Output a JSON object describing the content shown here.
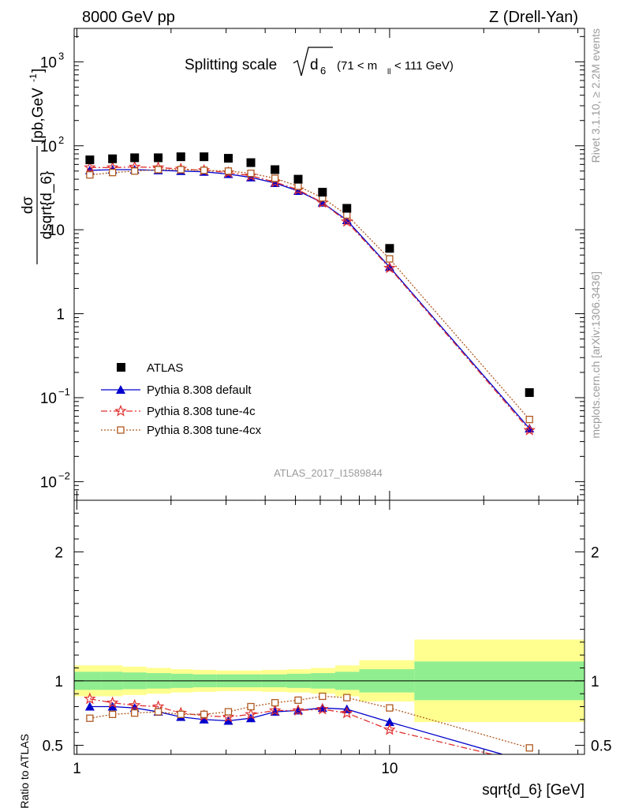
{
  "header": {
    "left": "8000 GeV pp",
    "right": "Z (Drell-Yan)"
  },
  "side": {
    "rivet": "Rivet 3.1.10, ≥ 2.2M events",
    "mcplots": "mcplots.cern.ch [arXiv:1306.3436]"
  },
  "watermark": "ATLAS_2017_I1589844",
  "chart_data": [
    {
      "type": "scatter",
      "panel": "main",
      "title": "Splitting scale √d6 (71 < mll < 111 GeV)",
      "title_parts": {
        "prefix": "Splitting scale",
        "sym": "d",
        "sub": "6",
        "cut": "(71 < m",
        "cut_sub": "ll",
        "cut_end": " < 111 GeV)"
      },
      "ylabel": "dσ/dsqrt{d_6} [pb,GeV^-1]",
      "ylabel_parts": {
        "num": "dσ",
        "den": "dsqrt{d_6}",
        "unit": "[pb,GeV",
        "exp": "-1",
        "close": "]"
      },
      "xlabel": "sqrt{d_6} [GeV]",
      "xscale": "log",
      "yscale": "log",
      "xlim": [
        0.98,
        42
      ],
      "ylim": [
        0.006,
        2500
      ],
      "yticks": [
        {
          "value": 0.01,
          "base": "10",
          "exp": "−2"
        },
        {
          "value": 0.1,
          "base": "10",
          "exp": "−1"
        },
        {
          "value": 1,
          "base": "1",
          "exp": ""
        },
        {
          "value": 10,
          "base": "10",
          "exp": ""
        },
        {
          "value": 100,
          "base": "10",
          "exp": "2"
        },
        {
          "value": 1000,
          "base": "10",
          "exp": "3"
        }
      ],
      "legend_position": "bottom-left",
      "series": [
        {
          "name": "ATLAS",
          "color": "#000000",
          "marker": "square",
          "line": "none",
          "x": [
            1.1,
            1.3,
            1.53,
            1.82,
            2.15,
            2.55,
            3.05,
            3.6,
            4.3,
            5.1,
            6.1,
            7.3,
            10.0,
            28.0
          ],
          "y": [
            68,
            70,
            72,
            72,
            74,
            74,
            71,
            63,
            52,
            40,
            28,
            18,
            6.0,
            0.115
          ]
        },
        {
          "name": "Pythia 8.308 default",
          "color": "#0000cc",
          "marker": "triangle",
          "line": "solid",
          "x": [
            1.1,
            1.3,
            1.53,
            1.82,
            2.15,
            2.55,
            3.05,
            3.6,
            4.3,
            5.1,
            6.1,
            7.3,
            10.0,
            28.0
          ],
          "y": [
            51,
            52,
            52,
            51,
            50,
            49,
            46,
            42,
            36,
            29,
            21,
            13,
            3.6,
            0.043
          ]
        },
        {
          "name": "Pythia 8.308 tune-4c",
          "color": "#e03030",
          "marker": "star",
          "line": "dashdot",
          "x": [
            1.1,
            1.3,
            1.53,
            1.82,
            2.15,
            2.55,
            3.05,
            3.6,
            4.3,
            5.1,
            6.1,
            7.3,
            10.0,
            28.0
          ],
          "y": [
            55,
            55,
            56,
            55,
            53,
            51,
            48,
            44,
            37,
            30,
            21,
            12.5,
            3.5,
            0.041
          ]
        },
        {
          "name": "Pythia 8.308 tune-4cx",
          "color": "#b05a20",
          "marker": "open-square",
          "line": "dotted",
          "x": [
            1.1,
            1.3,
            1.53,
            1.82,
            2.15,
            2.55,
            3.05,
            3.6,
            4.3,
            5.1,
            6.1,
            7.3,
            10.0,
            28.0
          ],
          "y": [
            45,
            48,
            50,
            52,
            52,
            51,
            50,
            47,
            41,
            33,
            24,
            15,
            4.5,
            0.055
          ]
        }
      ]
    },
    {
      "type": "line",
      "panel": "ratio",
      "ylabel": "Ratio to ATLAS",
      "xlabel": "sqrt{d_6} [GeV]",
      "xscale": "log",
      "xlim": [
        0.98,
        42
      ],
      "ylim": [
        0.43,
        2.4
      ],
      "yticks": [
        0.5,
        1,
        2
      ],
      "ytick_labels": [
        "0.5",
        "1",
        "2"
      ],
      "xticks": [
        1,
        10
      ],
      "xtick_labels": [
        "1",
        "10"
      ],
      "bands": {
        "bins": [
          [
            0.98,
            1.2
          ],
          [
            1.2,
            1.4
          ],
          [
            1.4,
            1.67
          ],
          [
            1.67,
            2.0
          ],
          [
            2.0,
            2.35
          ],
          [
            2.35,
            2.8
          ],
          [
            2.8,
            3.3
          ],
          [
            3.3,
            3.9
          ],
          [
            3.9,
            4.7
          ],
          [
            4.7,
            5.6
          ],
          [
            5.6,
            6.7
          ],
          [
            6.7,
            8.0
          ],
          [
            8.0,
            12.0
          ],
          [
            12.0,
            42.0
          ]
        ],
        "inner": [
          0.07,
          0.07,
          0.065,
          0.06,
          0.055,
          0.05,
          0.05,
          0.05,
          0.05,
          0.055,
          0.06,
          0.07,
          0.09,
          0.15
        ],
        "outer": [
          0.12,
          0.12,
          0.11,
          0.1,
          0.09,
          0.085,
          0.08,
          0.08,
          0.085,
          0.09,
          0.1,
          0.12,
          0.16,
          0.32
        ],
        "inner_color": "#90ee90",
        "outer_color": "#ffff90"
      },
      "series": [
        {
          "name": "Pythia 8.308 default",
          "color": "#0000cc",
          "marker": "triangle",
          "line": "solid",
          "x": [
            1.1,
            1.3,
            1.53,
            1.82,
            2.15,
            2.55,
            3.05,
            3.6,
            4.3,
            5.1,
            6.1,
            7.3,
            10.0,
            28.0
          ],
          "y": [
            0.8,
            0.8,
            0.79,
            0.76,
            0.72,
            0.7,
            0.69,
            0.71,
            0.76,
            0.77,
            0.79,
            0.78,
            0.68,
            0.37
          ]
        },
        {
          "name": "Pythia 8.308 tune-4c",
          "color": "#e03030",
          "marker": "star",
          "line": "dashdot",
          "x": [
            1.1,
            1.3,
            1.53,
            1.82,
            2.15,
            2.55,
            3.05,
            3.6,
            4.3,
            5.1,
            6.1,
            7.3,
            10.0,
            28.0
          ],
          "y": [
            0.86,
            0.83,
            0.81,
            0.8,
            0.75,
            0.73,
            0.72,
            0.74,
            0.77,
            0.77,
            0.78,
            0.75,
            0.62,
            0.36
          ]
        },
        {
          "name": "Pythia 8.308 tune-4cx",
          "color": "#b05a20",
          "marker": "open-square",
          "line": "dotted",
          "x": [
            1.1,
            1.3,
            1.53,
            1.82,
            2.15,
            2.55,
            3.05,
            3.6,
            4.3,
            5.1,
            6.1,
            7.3,
            10.0,
            28.0
          ],
          "y": [
            0.71,
            0.74,
            0.75,
            0.76,
            0.74,
            0.74,
            0.76,
            0.8,
            0.83,
            0.85,
            0.88,
            0.87,
            0.79,
            0.48
          ]
        }
      ]
    }
  ]
}
